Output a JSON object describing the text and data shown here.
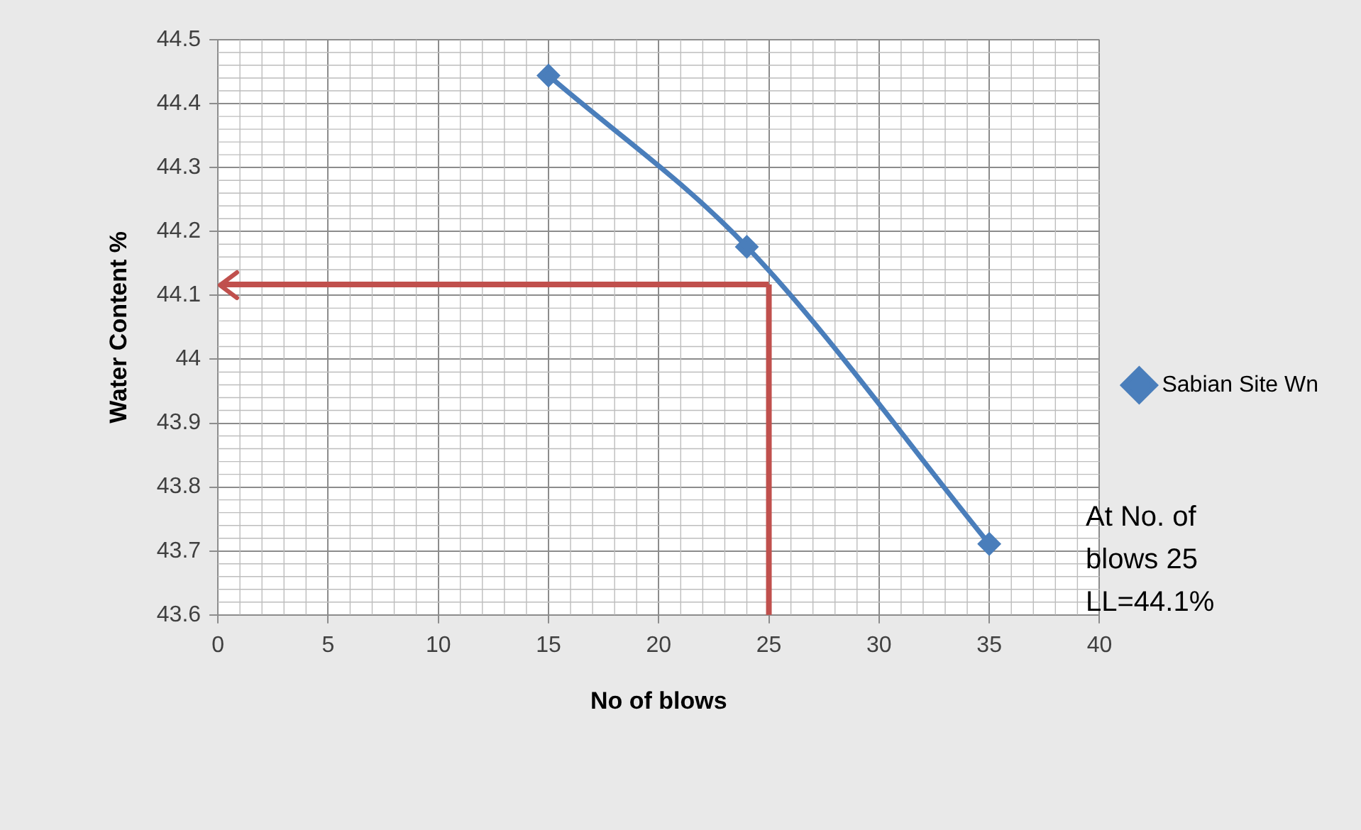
{
  "chart_data": {
    "type": "line",
    "xlabel": "No of blows",
    "ylabel": "Water Content %",
    "x": [
      15,
      24,
      35
    ],
    "series": [
      {
        "name": "Sabian Site Wn",
        "color": "#4a7ebb",
        "values": [
          44.444,
          44.176,
          43.711
        ]
      }
    ],
    "marker": "diamond",
    "xlim": [
      0,
      40
    ],
    "xticks": [
      0,
      5,
      10,
      15,
      20,
      25,
      30,
      35,
      40
    ],
    "ylim": [
      43.6,
      44.5
    ],
    "yticks": [
      43.6,
      43.7,
      43.8,
      43.9,
      44,
      44.1,
      44.2,
      44.3,
      44.4,
      44.5
    ],
    "grid": true,
    "legend": "right",
    "line_style": "solid",
    "ref_lines": [
      {
        "axis": "x",
        "value": 25,
        "color": "#c0504d"
      },
      {
        "axis": "y",
        "value": 44.117,
        "color": "#c0504d"
      }
    ],
    "annotations": [
      "At No. of blows 25 LL=44.1%"
    ]
  }
}
